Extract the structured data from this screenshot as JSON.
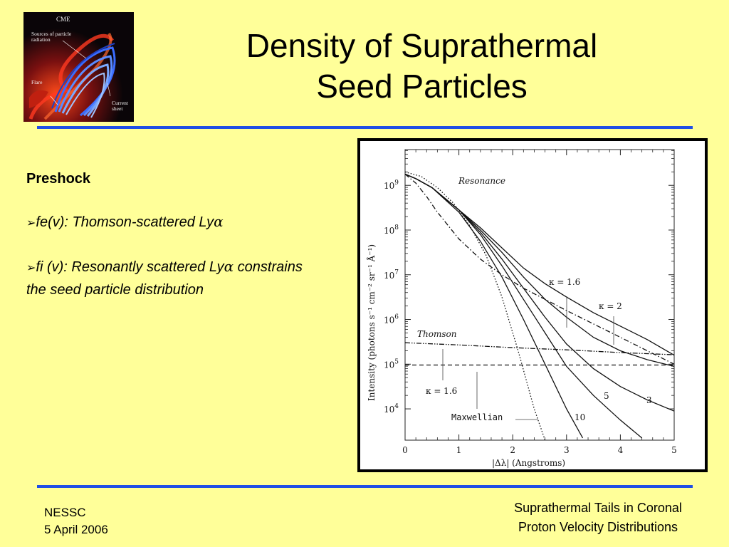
{
  "logo": {
    "cme": "CME",
    "sources_line1": "Sources of particle",
    "sources_line2": "radiation",
    "flare": "Flare",
    "current_line1": "Current",
    "current_line2": "sheet"
  },
  "slide": {
    "title_line1": "Density of Suprathermal",
    "title_line2": "Seed Particles"
  },
  "content": {
    "heading": "Preshock",
    "bullet_marker": "➢",
    "bullet1_prefix": "fe(v): Thomson-scattered Ly",
    "bullet1_greek": "α",
    "bullet2_prefix": "fi (v):  Resonantly scattered Ly",
    "bullet2_greek": "α",
    "bullet2_rest": " constrains the seed particle distribution"
  },
  "footer": {
    "left_line1": "NESSC",
    "left_line2": "5 April 2006",
    "right_line1": "Suprathermal Tails in Coronal",
    "right_line2": "Proton Velocity Distributions"
  },
  "colors": {
    "background": "#ffff99",
    "rule": "#1f4fe6"
  },
  "chart_data": {
    "type": "line",
    "xlabel": "|Δλ|   (Angstroms)",
    "ylabel": "Intensity   (photons s⁻¹ cm⁻² sr⁻¹ Å⁻¹)",
    "xlim": [
      0,
      5
    ],
    "ylim_log10": [
      3.3,
      9.8
    ],
    "y_scale": "log",
    "x_ticks": [
      "0",
      "1",
      "2",
      "3",
      "4",
      "5"
    ],
    "y_ticks": [
      {
        "base": "10",
        "exp": "4",
        "v": 4
      },
      {
        "base": "10",
        "exp": "5",
        "v": 5
      },
      {
        "base": "10",
        "exp": "6",
        "v": 6
      },
      {
        "base": "10",
        "exp": "7",
        "v": 7
      },
      {
        "base": "10",
        "exp": "8",
        "v": 8
      },
      {
        "base": "10",
        "exp": "9",
        "v": 9
      }
    ],
    "annotations": {
      "resonance": "Resonance",
      "thomson": "Thomson",
      "kappa16_upper": "κ = 1.6",
      "kappa2": "κ = 2",
      "kappa16_lower": "κ = 1.6",
      "maxwellian": "Maxwellian",
      "k5": "5",
      "k3": "3",
      "k10": "10"
    },
    "series": [
      {
        "style": "solid",
        "x": [
          0,
          0.2,
          0.5,
          0.8,
          1.0,
          1.4,
          1.8,
          2.2,
          2.6,
          3.0,
          3.5,
          4.0,
          4.5,
          5.0
        ],
        "log10_y": [
          9.25,
          9.15,
          8.95,
          8.65,
          8.45,
          8.05,
          7.6,
          7.15,
          6.8,
          6.5,
          6.15,
          5.85,
          5.55,
          5.2
        ]
      },
      {
        "style": "solid",
        "x": [
          0,
          0.2,
          0.5,
          0.8,
          1.0,
          1.4,
          1.8,
          2.2,
          2.6,
          3.0,
          3.5,
          4.0,
          4.5,
          5.0
        ],
        "log10_y": [
          9.25,
          9.15,
          8.95,
          8.65,
          8.45,
          8.0,
          7.5,
          6.95,
          6.45,
          6.05,
          5.6,
          5.3,
          5.1,
          4.95
        ]
      },
      {
        "style": "solid",
        "x": [
          0,
          0.2,
          0.5,
          0.8,
          1.0,
          1.4,
          1.8,
          2.2,
          2.6,
          3.0,
          3.5,
          4.0,
          4.5,
          5.0
        ],
        "log10_y": [
          9.25,
          9.15,
          8.95,
          8.65,
          8.45,
          7.95,
          7.35,
          6.7,
          6.05,
          5.45,
          4.9,
          4.5,
          4.2,
          3.95
        ]
      },
      {
        "style": "solid",
        "x": [
          0,
          0.2,
          0.5,
          0.8,
          1.0,
          1.4,
          1.8,
          2.2,
          2.6,
          3.0,
          3.5,
          4.0,
          4.4
        ],
        "log10_y": [
          9.25,
          9.15,
          8.95,
          8.65,
          8.45,
          7.9,
          7.2,
          6.45,
          5.7,
          4.95,
          4.3,
          3.75,
          3.35
        ]
      },
      {
        "style": "solid",
        "x": [
          0,
          0.2,
          0.5,
          0.8,
          1.0,
          1.4,
          1.8,
          2.2,
          2.6,
          3.0,
          3.3
        ],
        "log10_y": [
          9.25,
          9.15,
          8.95,
          8.62,
          8.4,
          7.75,
          6.95,
          6.0,
          5.0,
          4.0,
          3.35
        ]
      },
      {
        "style": "dotted",
        "x": [
          0,
          0.3,
          0.6,
          0.9,
          1.2,
          1.5,
          1.8,
          2.1,
          2.4,
          2.6
        ],
        "log10_y": [
          9.3,
          9.2,
          8.95,
          8.6,
          8.1,
          7.45,
          6.5,
          5.3,
          4.0,
          3.3
        ]
      },
      {
        "style": "dashdot",
        "x": [
          0,
          0.2,
          0.4,
          0.6,
          0.8,
          1.0,
          1.4,
          1.8,
          2.2,
          2.6,
          3.0,
          3.5,
          4.0,
          4.5,
          5.0
        ],
        "log10_y": [
          9.25,
          9.05,
          8.75,
          8.4,
          8.1,
          7.8,
          7.35,
          7.0,
          6.7,
          6.45,
          6.2,
          5.9,
          5.6,
          5.3,
          5.0
        ]
      },
      {
        "style": "dashdotdot",
        "x": [
          0,
          1.0,
          2.0,
          3.0,
          4.0,
          5.0
        ],
        "log10_y": [
          5.48,
          5.43,
          5.37,
          5.32,
          5.26,
          5.21
        ]
      },
      {
        "style": "dashed",
        "x": [
          0,
          5.0
        ],
        "log10_y": [
          4.98,
          4.98
        ]
      }
    ]
  }
}
